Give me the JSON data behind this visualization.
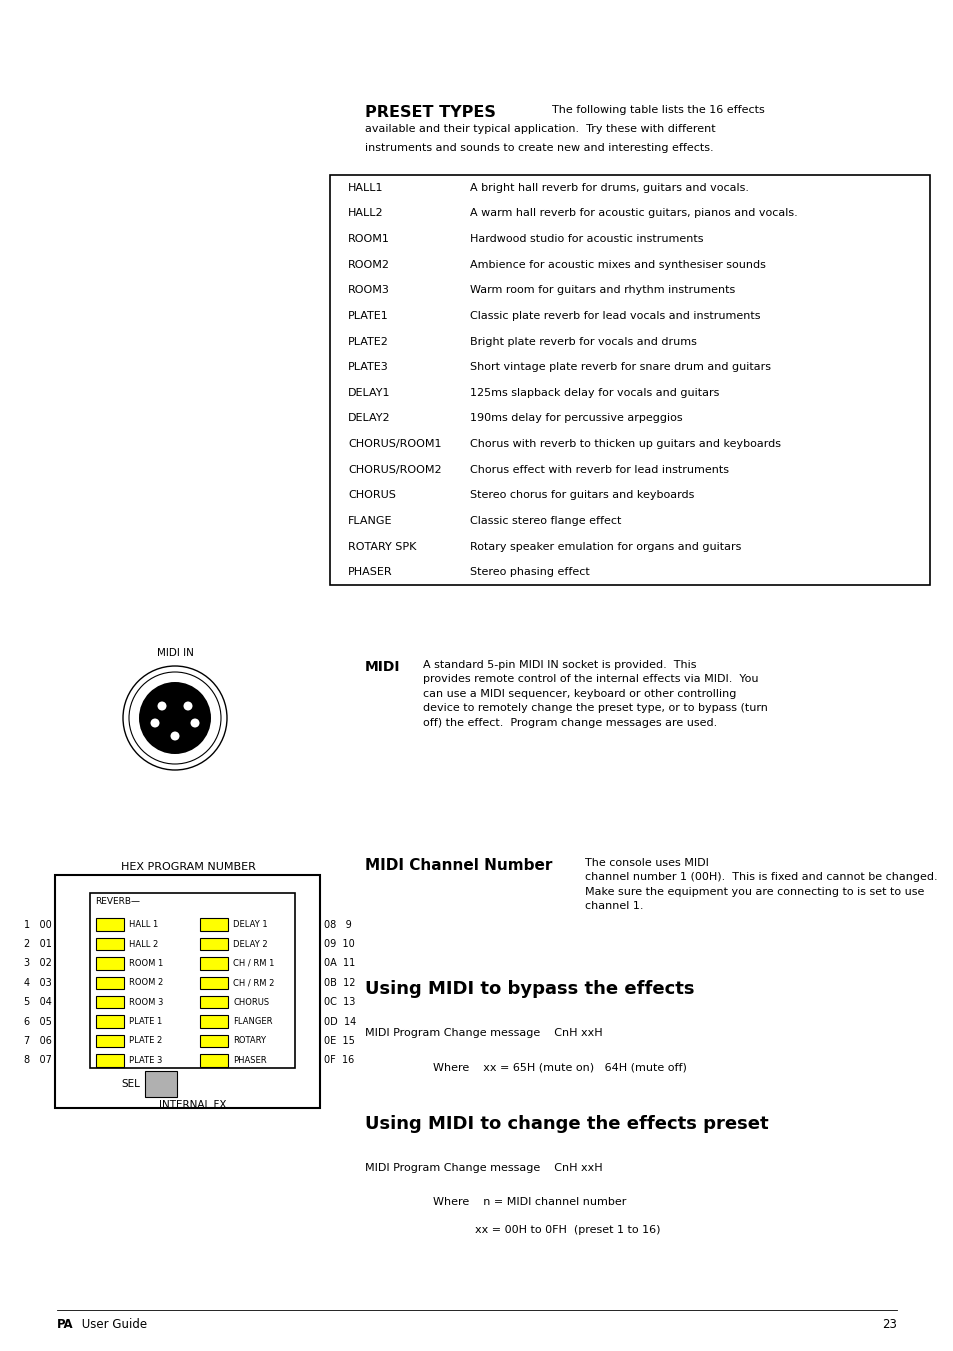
{
  "bg_color": "#ffffff",
  "page_width": 9.54,
  "page_height": 13.51,
  "preset_table": [
    [
      "HALL1",
      "A bright hall reverb for drums, guitars and vocals."
    ],
    [
      "HALL2",
      "A warm hall reverb for acoustic guitars, pianos and vocals."
    ],
    [
      "ROOM1",
      "Hardwood studio for acoustic instruments"
    ],
    [
      "ROOM2",
      "Ambience for acoustic mixes and synthesiser sounds"
    ],
    [
      "ROOM3",
      "Warm room for guitars and rhythm instruments"
    ],
    [
      "PLATE1",
      "Classic plate reverb for lead vocals and instruments"
    ],
    [
      "PLATE2",
      "Bright plate reverb for vocals and drums"
    ],
    [
      "PLATE3",
      "Short vintage plate reverb for snare drum and guitars"
    ],
    [
      "DELAY1",
      "125ms slapback delay for vocals and guitars"
    ],
    [
      "DELAY2",
      "190ms delay for percussive arpeggios"
    ],
    [
      "CHORUS/ROOM1",
      "Chorus with reverb to thicken up guitars and keyboards"
    ],
    [
      "CHORUS/ROOM2",
      "Chorus effect with reverb for lead instruments"
    ],
    [
      "CHORUS",
      "Stereo chorus for guitars and keyboards"
    ],
    [
      "FLANGE",
      "Classic stereo flange effect"
    ],
    [
      "ROTARY SPK",
      "Rotary speaker emulation for organs and guitars"
    ],
    [
      "PHASER",
      "Stereo phasing effect"
    ]
  ],
  "left_col_numbers": [
    "1   00",
    "2   01",
    "3   02",
    "4   03",
    "5   04",
    "6   05",
    "7   06",
    "8   07"
  ],
  "right_col_numbers": [
    "08   9",
    "09  10",
    "0A  11",
    "0B  12",
    "0C  13",
    "0D  14",
    "0E  15",
    "0F  16"
  ],
  "left_labels": [
    "HALL 1",
    "HALL 2",
    "ROOM 1",
    "ROOM 2",
    "ROOM 3",
    "PLATE 1",
    "PLATE 2",
    "PLATE 3"
  ],
  "right_labels": [
    "DELAY 1",
    "DELAY 2",
    "CH / RM 1",
    "CH / RM 2",
    "CHORUS",
    "FLANGER",
    "ROTARY",
    "PHASER"
  ],
  "yellow_color": "#ffff00",
  "gray_color": "#b0b0b0"
}
